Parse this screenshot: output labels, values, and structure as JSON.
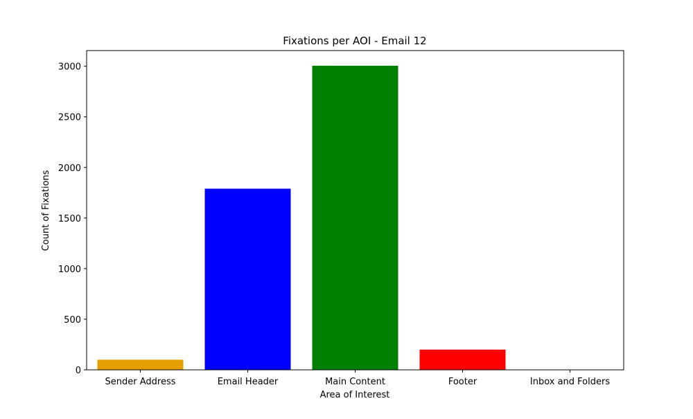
{
  "chart_data": {
    "type": "bar",
    "title": "Fixations per AOI - Email 12",
    "xlabel": "Area of Interest",
    "ylabel": "Count of Fixations",
    "categories": [
      "Sender Address",
      "Email Header",
      "Main Content",
      "Footer",
      "Inbox and Folders"
    ],
    "values": [
      100,
      1790,
      3005,
      200,
      0
    ],
    "colors": [
      "#e69f00",
      "#0000ff",
      "#008000",
      "#ff0000",
      "#808080"
    ],
    "ylim": [
      0,
      3155
    ],
    "yticks": [
      0,
      500,
      1000,
      1500,
      2000,
      2500,
      3000
    ],
    "grid": false,
    "legend": "none"
  }
}
